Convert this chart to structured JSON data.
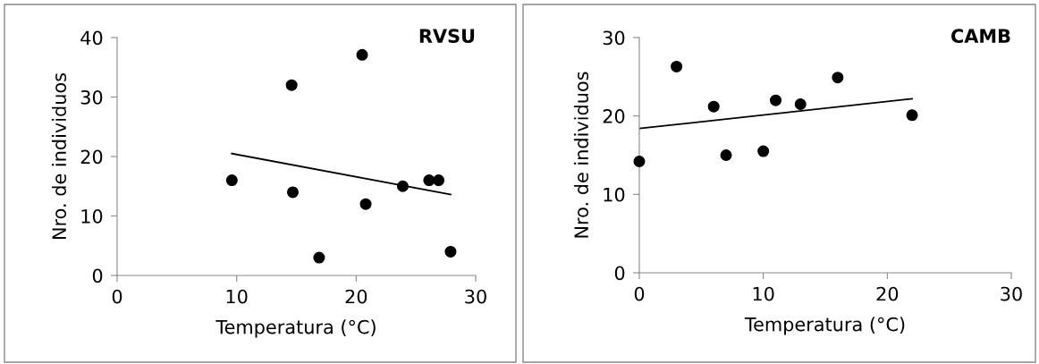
{
  "chart_data": [
    {
      "type": "scatter",
      "title": "RVSU",
      "xlabel": "Temperatura (°C)",
      "ylabel": "Nro. de individuos",
      "xlim": [
        0,
        30
      ],
      "xticks": [
        0,
        10,
        20,
        30
      ],
      "ylim": [
        0,
        40
      ],
      "yticks": [
        0,
        10,
        20,
        30,
        40
      ],
      "grid": false,
      "series": [
        {
          "color": "#000000",
          "marker": "circle",
          "x": [
            9.6,
            14.6,
            14.7,
            16.9,
            20.5,
            20.8,
            23.9,
            26.1,
            26.9,
            27.9
          ],
          "values": [
            16.0,
            32.0,
            14.0,
            3.0,
            37.1,
            12.0,
            15.0,
            16.0,
            16.0,
            4.0
          ]
        },
        {
          "type": "line",
          "color": "#000000",
          "line_style": "solid",
          "x": [
            9.6,
            27.9
          ],
          "values": [
            20.5,
            13.6
          ]
        }
      ]
    },
    {
      "type": "scatter",
      "title": "CAMB",
      "xlabel": "Temperatura (°C)",
      "ylabel": "Nro. de individuos",
      "xlim": [
        0,
        30
      ],
      "xticks": [
        0,
        10,
        20,
        30
      ],
      "ylim": [
        0,
        30
      ],
      "yticks": [
        0,
        10,
        20,
        30
      ],
      "grid": false,
      "series": [
        {
          "color": "#000000",
          "marker": "circle",
          "x": [
            0,
            3.0,
            6.0,
            7.0,
            10.0,
            11.0,
            13.0,
            16.0,
            22.0
          ],
          "values": [
            14.2,
            26.3,
            21.2,
            15.0,
            15.5,
            22.0,
            21.5,
            24.9,
            20.1
          ]
        },
        {
          "type": "line",
          "color": "#000000",
          "line_style": "solid",
          "x": [
            0,
            22.0
          ],
          "values": [
            18.4,
            22.2
          ]
        }
      ]
    }
  ]
}
